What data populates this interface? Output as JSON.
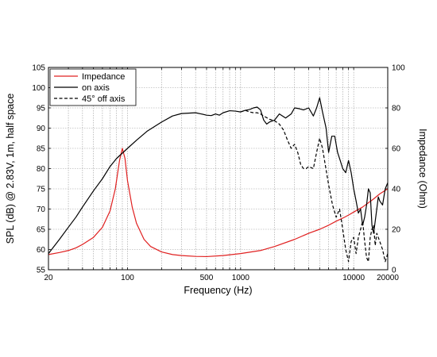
{
  "chart_data": {
    "type": "line",
    "xscale": "log",
    "xlim": [
      20,
      20000
    ],
    "xlabel": "Frequency (Hz)",
    "x_ticks": [
      {
        "value": 20,
        "label": "20"
      },
      {
        "value": 100,
        "label": "100"
      },
      {
        "value": 500,
        "label": "500"
      },
      {
        "value": 1000,
        "label": "1000"
      },
      {
        "value": 10000,
        "label": "10000"
      },
      {
        "value": 20000,
        "label": "20000"
      }
    ],
    "ylabel_left": "SPL (dB) @ 2.83V, 1m, half space",
    "ylim_left": [
      55,
      105
    ],
    "yticks_left": [
      55,
      60,
      65,
      70,
      75,
      80,
      85,
      90,
      95,
      100,
      105
    ],
    "ylabel_right": "Impedance (Ohm)",
    "ylim_right": [
      0,
      100
    ],
    "yticks_right": [
      0,
      20,
      40,
      60,
      80,
      100
    ],
    "grid": "on",
    "legend_position": "top-left",
    "colors": {
      "impedance": "#e02020",
      "on_axis": "#000000",
      "off_axis": "#000000",
      "grid": "#9a9a9a"
    },
    "series": [
      {
        "name": "Impedance",
        "axis": "right",
        "color": "#e02020",
        "style": "solid",
        "points": [
          [
            20,
            7.5
          ],
          [
            25,
            8.5
          ],
          [
            30,
            9.5
          ],
          [
            35,
            10.8
          ],
          [
            40,
            12.5
          ],
          [
            50,
            16
          ],
          [
            60,
            21
          ],
          [
            70,
            29
          ],
          [
            78,
            40
          ],
          [
            85,
            54
          ],
          [
            90,
            60
          ],
          [
            95,
            55
          ],
          [
            100,
            44
          ],
          [
            110,
            31
          ],
          [
            120,
            23
          ],
          [
            140,
            15
          ],
          [
            160,
            11.5
          ],
          [
            200,
            8.8
          ],
          [
            250,
            7.5
          ],
          [
            300,
            7
          ],
          [
            400,
            6.6
          ],
          [
            500,
            6.5
          ],
          [
            700,
            7
          ],
          [
            1000,
            8
          ],
          [
            1500,
            9.5
          ],
          [
            2000,
            11.5
          ],
          [
            3000,
            15
          ],
          [
            4000,
            18
          ],
          [
            5000,
            20
          ],
          [
            6000,
            22
          ],
          [
            7000,
            24
          ],
          [
            8000,
            25.5
          ],
          [
            9000,
            27
          ],
          [
            10000,
            28.5
          ],
          [
            12000,
            31
          ],
          [
            15000,
            35
          ],
          [
            17000,
            37.5
          ],
          [
            20000,
            40
          ]
        ]
      },
      {
        "name": "on axis",
        "axis": "left",
        "color": "#000000",
        "style": "solid",
        "points": [
          [
            20,
            59
          ],
          [
            25,
            62.5
          ],
          [
            30,
            65.5
          ],
          [
            35,
            68
          ],
          [
            40,
            70.5
          ],
          [
            50,
            74.5
          ],
          [
            60,
            77.5
          ],
          [
            70,
            80.5
          ],
          [
            80,
            82.5
          ],
          [
            100,
            85
          ],
          [
            120,
            87
          ],
          [
            150,
            89.3
          ],
          [
            200,
            91.5
          ],
          [
            250,
            93
          ],
          [
            300,
            93.6
          ],
          [
            400,
            93.8
          ],
          [
            450,
            93.5
          ],
          [
            500,
            93.2
          ],
          [
            550,
            93.1
          ],
          [
            600,
            93.5
          ],
          [
            650,
            93.2
          ],
          [
            700,
            93.8
          ],
          [
            800,
            94.3
          ],
          [
            900,
            94.2
          ],
          [
            1000,
            94
          ],
          [
            1100,
            94.4
          ],
          [
            1200,
            94.6
          ],
          [
            1300,
            95
          ],
          [
            1400,
            95.2
          ],
          [
            1500,
            94.5
          ],
          [
            1600,
            92
          ],
          [
            1700,
            91
          ],
          [
            1800,
            91.5
          ],
          [
            2000,
            92
          ],
          [
            2200,
            93.5
          ],
          [
            2500,
            92.5
          ],
          [
            2800,
            93.5
          ],
          [
            3000,
            95
          ],
          [
            3300,
            94.8
          ],
          [
            3600,
            94.5
          ],
          [
            4000,
            95
          ],
          [
            4400,
            93
          ],
          [
            4700,
            95
          ],
          [
            5000,
            97.5
          ],
          [
            5300,
            94
          ],
          [
            5700,
            90
          ],
          [
            6000,
            84
          ],
          [
            6400,
            88
          ],
          [
            6800,
            88
          ],
          [
            7200,
            84
          ],
          [
            7600,
            82
          ],
          [
            8000,
            80
          ],
          [
            8500,
            79
          ],
          [
            9000,
            82
          ],
          [
            9500,
            79
          ],
          [
            10000,
            75
          ],
          [
            10500,
            72
          ],
          [
            11000,
            69
          ],
          [
            11500,
            70
          ],
          [
            12000,
            66
          ],
          [
            12500,
            68
          ],
          [
            13000,
            71
          ],
          [
            13500,
            75
          ],
          [
            14000,
            74
          ],
          [
            14500,
            66
          ],
          [
            15000,
            64
          ],
          [
            15500,
            67
          ],
          [
            16000,
            70
          ],
          [
            16500,
            73
          ],
          [
            17000,
            72
          ],
          [
            18000,
            71
          ],
          [
            19000,
            75
          ],
          [
            20000,
            76.5
          ]
        ]
      },
      {
        "name": "45° off axis",
        "axis": "left",
        "color": "#000000",
        "style": "dashed",
        "points": [
          [
            1000,
            94
          ],
          [
            1100,
            94.4
          ],
          [
            1200,
            94
          ],
          [
            1300,
            93.8
          ],
          [
            1400,
            93.8
          ],
          [
            1500,
            93.5
          ],
          [
            1600,
            93
          ],
          [
            1800,
            92.2
          ],
          [
            2000,
            91.8
          ],
          [
            2200,
            91
          ],
          [
            2400,
            89.5
          ],
          [
            2600,
            87
          ],
          [
            2800,
            85
          ],
          [
            3000,
            86
          ],
          [
            3200,
            84
          ],
          [
            3400,
            81
          ],
          [
            3600,
            80
          ],
          [
            3800,
            80
          ],
          [
            4000,
            80.5
          ],
          [
            4400,
            80
          ],
          [
            4700,
            84
          ],
          [
            5000,
            87.5
          ],
          [
            5300,
            85
          ],
          [
            5600,
            81
          ],
          [
            6000,
            76
          ],
          [
            6500,
            71
          ],
          [
            7000,
            68
          ],
          [
            7500,
            70
          ],
          [
            8000,
            65
          ],
          [
            8500,
            60
          ],
          [
            9000,
            57
          ],
          [
            9500,
            62
          ],
          [
            10000,
            63
          ],
          [
            10500,
            59
          ],
          [
            11000,
            63
          ],
          [
            11500,
            65
          ],
          [
            12000,
            67
          ],
          [
            12500,
            62
          ],
          [
            13000,
            58
          ],
          [
            13500,
            57
          ],
          [
            14000,
            63
          ],
          [
            14500,
            65
          ],
          [
            15000,
            66
          ],
          [
            15500,
            61
          ],
          [
            16000,
            64
          ],
          [
            17000,
            62
          ],
          [
            18000,
            60
          ],
          [
            19000,
            57
          ],
          [
            20000,
            59
          ]
        ]
      }
    ]
  }
}
